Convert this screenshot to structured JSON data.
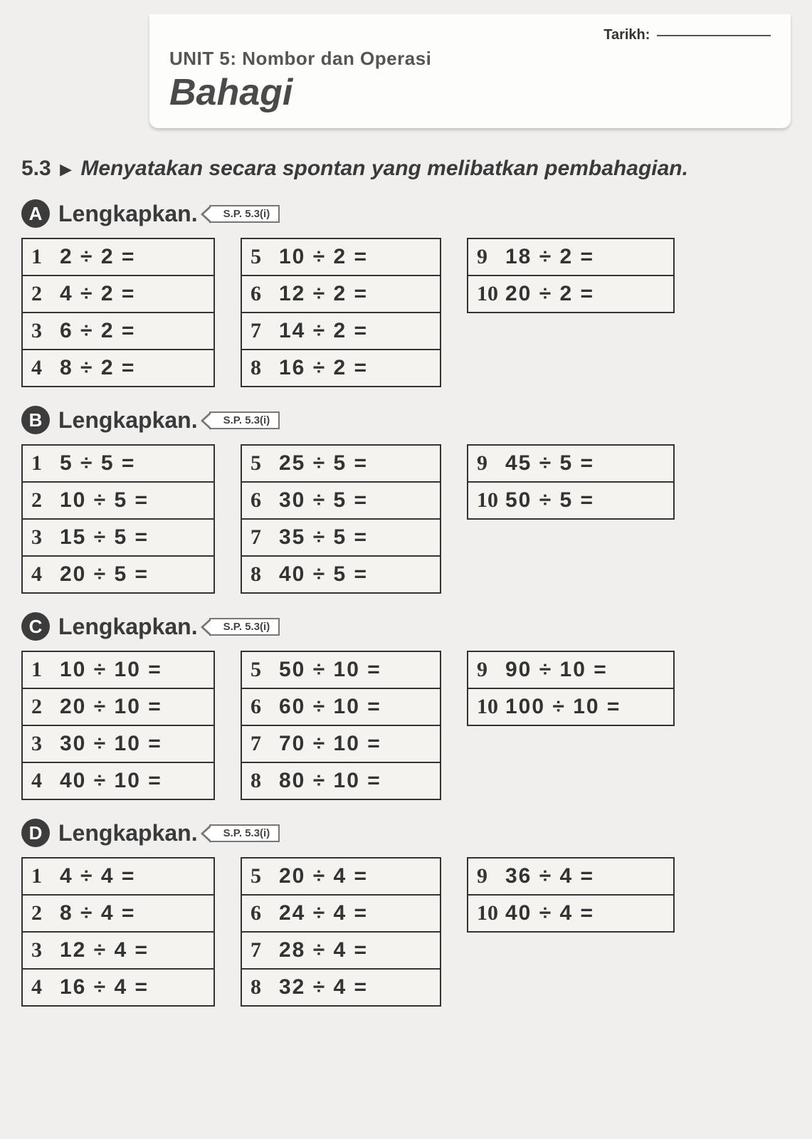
{
  "header": {
    "tarikh_label": "Tarikh:",
    "unit_line": "UNIT 5: Nombor dan Operasi",
    "title": "Bahagi"
  },
  "subheading": {
    "number": "5.3",
    "triangle": "▶",
    "text": "Menyatakan secara spontan yang melibatkan pembahagian."
  },
  "sections": [
    {
      "letter": "A",
      "title": "Lengkapkan.",
      "sp": "S.P. 5.3(i)",
      "columns": [
        [
          {
            "n": "1",
            "eq": "2 ÷ 2 ="
          },
          {
            "n": "2",
            "eq": "4 ÷ 2 ="
          },
          {
            "n": "3",
            "eq": "6 ÷ 2 ="
          },
          {
            "n": "4",
            "eq": "8 ÷ 2 ="
          }
        ],
        [
          {
            "n": "5",
            "eq": "10 ÷ 2 ="
          },
          {
            "n": "6",
            "eq": "12 ÷ 2 ="
          },
          {
            "n": "7",
            "eq": "14 ÷ 2 ="
          },
          {
            "n": "8",
            "eq": "16 ÷ 2 ="
          }
        ],
        [
          {
            "n": "9",
            "eq": "18 ÷ 2 ="
          },
          {
            "n": "10",
            "eq": "20 ÷ 2 ="
          }
        ]
      ]
    },
    {
      "letter": "B",
      "title": "Lengkapkan.",
      "sp": "S.P. 5.3(i)",
      "columns": [
        [
          {
            "n": "1",
            "eq": "5 ÷ 5 ="
          },
          {
            "n": "2",
            "eq": "10 ÷ 5 ="
          },
          {
            "n": "3",
            "eq": "15 ÷ 5 ="
          },
          {
            "n": "4",
            "eq": "20 ÷ 5 ="
          }
        ],
        [
          {
            "n": "5",
            "eq": "25 ÷ 5 ="
          },
          {
            "n": "6",
            "eq": "30 ÷ 5 ="
          },
          {
            "n": "7",
            "eq": "35 ÷ 5 ="
          },
          {
            "n": "8",
            "eq": "40 ÷ 5 ="
          }
        ],
        [
          {
            "n": "9",
            "eq": "45 ÷ 5 ="
          },
          {
            "n": "10",
            "eq": "50 ÷ 5 ="
          }
        ]
      ]
    },
    {
      "letter": "C",
      "title": "Lengkapkan.",
      "sp": "S.P. 5.3(i)",
      "columns": [
        [
          {
            "n": "1",
            "eq": "10 ÷ 10 ="
          },
          {
            "n": "2",
            "eq": "20 ÷ 10 ="
          },
          {
            "n": "3",
            "eq": "30 ÷ 10 ="
          },
          {
            "n": "4",
            "eq": "40 ÷ 10 ="
          }
        ],
        [
          {
            "n": "5",
            "eq": "50 ÷ 10 ="
          },
          {
            "n": "6",
            "eq": "60 ÷ 10 ="
          },
          {
            "n": "7",
            "eq": "70 ÷ 10 ="
          },
          {
            "n": "8",
            "eq": "80 ÷ 10 ="
          }
        ],
        [
          {
            "n": "9",
            "eq": "90 ÷ 10 ="
          },
          {
            "n": "10",
            "eq": "100 ÷ 10 ="
          }
        ]
      ]
    },
    {
      "letter": "D",
      "title": "Lengkapkan.",
      "sp": "S.P. 5.3(i)",
      "columns": [
        [
          {
            "n": "1",
            "eq": "4 ÷ 4 ="
          },
          {
            "n": "2",
            "eq": "8 ÷ 4 ="
          },
          {
            "n": "3",
            "eq": "12 ÷ 4 ="
          },
          {
            "n": "4",
            "eq": "16 ÷ 4 ="
          }
        ],
        [
          {
            "n": "5",
            "eq": "20 ÷ 4 ="
          },
          {
            "n": "6",
            "eq": "24 ÷ 4 ="
          },
          {
            "n": "7",
            "eq": "28 ÷ 4 ="
          },
          {
            "n": "8",
            "eq": "32 ÷ 4 ="
          }
        ],
        [
          {
            "n": "9",
            "eq": "36 ÷ 4 ="
          },
          {
            "n": "10",
            "eq": "40 ÷ 4 ="
          }
        ]
      ]
    }
  ],
  "colors": {
    "page_bg": "#f0efed",
    "card_bg": "#fdfdfb",
    "text": "#3a3a3a",
    "border": "#333333",
    "badge_bg": "#3c3c3c"
  }
}
